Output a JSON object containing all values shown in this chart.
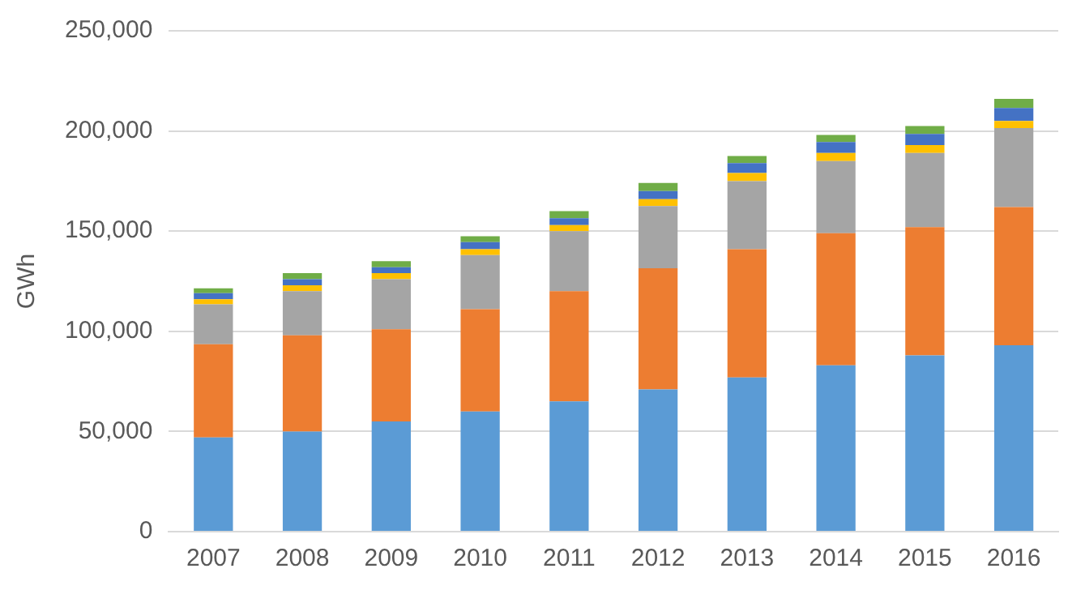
{
  "chart_data": {
    "type": "bar",
    "stacked": true,
    "ylabel": "GWh",
    "categories": [
      "2007",
      "2008",
      "2009",
      "2010",
      "2011",
      "2012",
      "2013",
      "2014",
      "2015",
      "2016"
    ],
    "series": [
      {
        "color": "#5b9bd5",
        "values": [
          47000,
          50000,
          55000,
          60000,
          65000,
          71000,
          77000,
          83000,
          88000,
          93000
        ]
      },
      {
        "color": "#ed7d31",
        "values": [
          46500,
          48000,
          46000,
          51000,
          55000,
          60500,
          64000,
          66000,
          64000,
          69000
        ]
      },
      {
        "color": "#a5a5a5",
        "values": [
          20000,
          22000,
          25000,
          27000,
          30000,
          31000,
          34000,
          36000,
          37000,
          39500
        ]
      },
      {
        "color": "#ffc000",
        "values": [
          2500,
          3000,
          3000,
          3000,
          3000,
          3500,
          4000,
          4000,
          4000,
          3500
        ]
      },
      {
        "color": "#4472c4",
        "values": [
          3000,
          3000,
          3000,
          3500,
          3500,
          4000,
          5000,
          5500,
          5500,
          6500
        ]
      },
      {
        "color": "#70ad47",
        "values": [
          2500,
          3000,
          3000,
          3000,
          3500,
          4000,
          3500,
          3500,
          4000,
          4500
        ]
      }
    ],
    "ylim": [
      0,
      250000
    ],
    "yticks": [
      0,
      {
        "value": 50000,
        "label": "50,000"
      },
      {
        "value": 100000,
        "label": "100,000"
      },
      {
        "value": 150000,
        "label": "150,000"
      },
      {
        "value": 200000,
        "label": "200,000"
      },
      {
        "value": 250000,
        "label": "250,000"
      }
    ],
    "grid": "y",
    "legend": false
  }
}
